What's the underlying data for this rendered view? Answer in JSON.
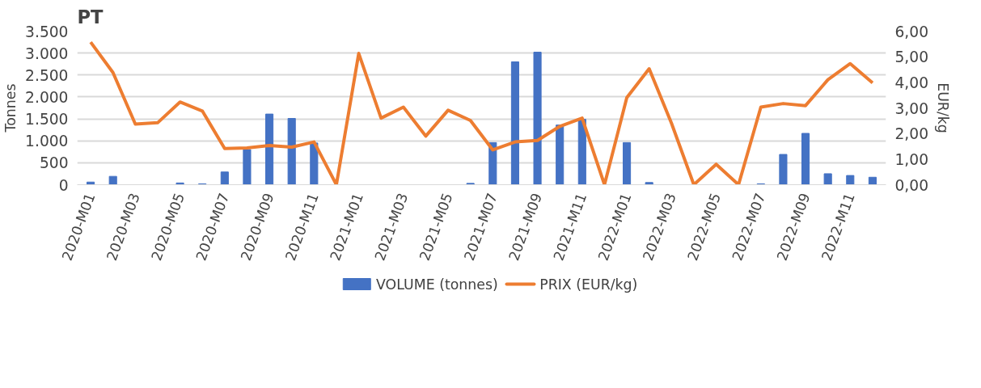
{
  "chart_data": {
    "type": "bar",
    "title": "PT",
    "ylabel": "Tonnes",
    "y2label": "EUR/kg",
    "categories": [
      "2020-M01",
      null,
      "2020-M03",
      null,
      "2020-M05",
      null,
      "2020-M07",
      null,
      "2020-M09",
      null,
      "2020-M11",
      null,
      "2021-M01",
      null,
      "2021-M03",
      null,
      "2021-M05",
      null,
      "2021-M07",
      null,
      "2021-M09",
      null,
      "2021-M11",
      null,
      "2022-M01",
      null,
      "2022-M03",
      null,
      "2022-M05",
      null,
      "2022-M07",
      null,
      "2022-M09",
      null,
      "2022-M11",
      null
    ],
    "series": [
      {
        "name": "VOLUME (tonnes)",
        "type": "bar",
        "color": "#4472c4",
        "values": [
          60,
          190,
          0,
          0,
          40,
          20,
          290,
          800,
          1610,
          1510,
          950,
          0,
          0,
          0,
          0,
          0,
          0,
          30,
          960,
          2800,
          3020,
          1360,
          1490,
          0,
          960,
          50,
          0,
          0,
          0,
          0,
          20,
          690,
          1170,
          250,
          210,
          170
        ]
      },
      {
        "name": "PRIX (EUR/kg)",
        "type": "line",
        "axis": "y2",
        "color": "#ed7d31",
        "values": [
          5.57,
          4.38,
          2.37,
          2.42,
          3.23,
          2.88,
          1.41,
          1.44,
          1.53,
          1.47,
          1.67,
          0,
          5.13,
          2.6,
          3.03,
          1.9,
          2.91,
          2.51,
          1.36,
          1.67,
          1.73,
          2.28,
          2.6,
          0,
          3.4,
          4.53,
          2.4,
          0,
          0.8,
          0,
          3.03,
          3.17,
          3.09,
          4.1,
          4.73,
          3.98
        ]
      }
    ],
    "ylim": [
      0,
      3500
    ],
    "yticks": [
      0,
      {
        "value": 500,
        "label": "500"
      },
      {
        "value": 1000,
        "label": "1.000"
      },
      {
        "value": 1500,
        "label": "1.500"
      },
      {
        "value": 2000,
        "label": "2.000"
      },
      {
        "value": 2500,
        "label": "2.500"
      },
      {
        "value": 3000,
        "label": "3.000"
      },
      {
        "value": 3500,
        "label": "3.500"
      }
    ],
    "y2lim": [
      0,
      6
    ],
    "y2ticks": [
      {
        "value": 0,
        "label": "0,00"
      },
      {
        "value": 1,
        "label": "1,00"
      },
      {
        "value": 2,
        "label": "2,00"
      },
      {
        "value": 3,
        "label": "3,00"
      },
      {
        "value": 4,
        "label": "4,00"
      },
      {
        "value": 5,
        "label": "5,00"
      },
      {
        "value": 6,
        "label": "6,00"
      }
    ],
    "grid": "y",
    "legend": "bottom"
  }
}
